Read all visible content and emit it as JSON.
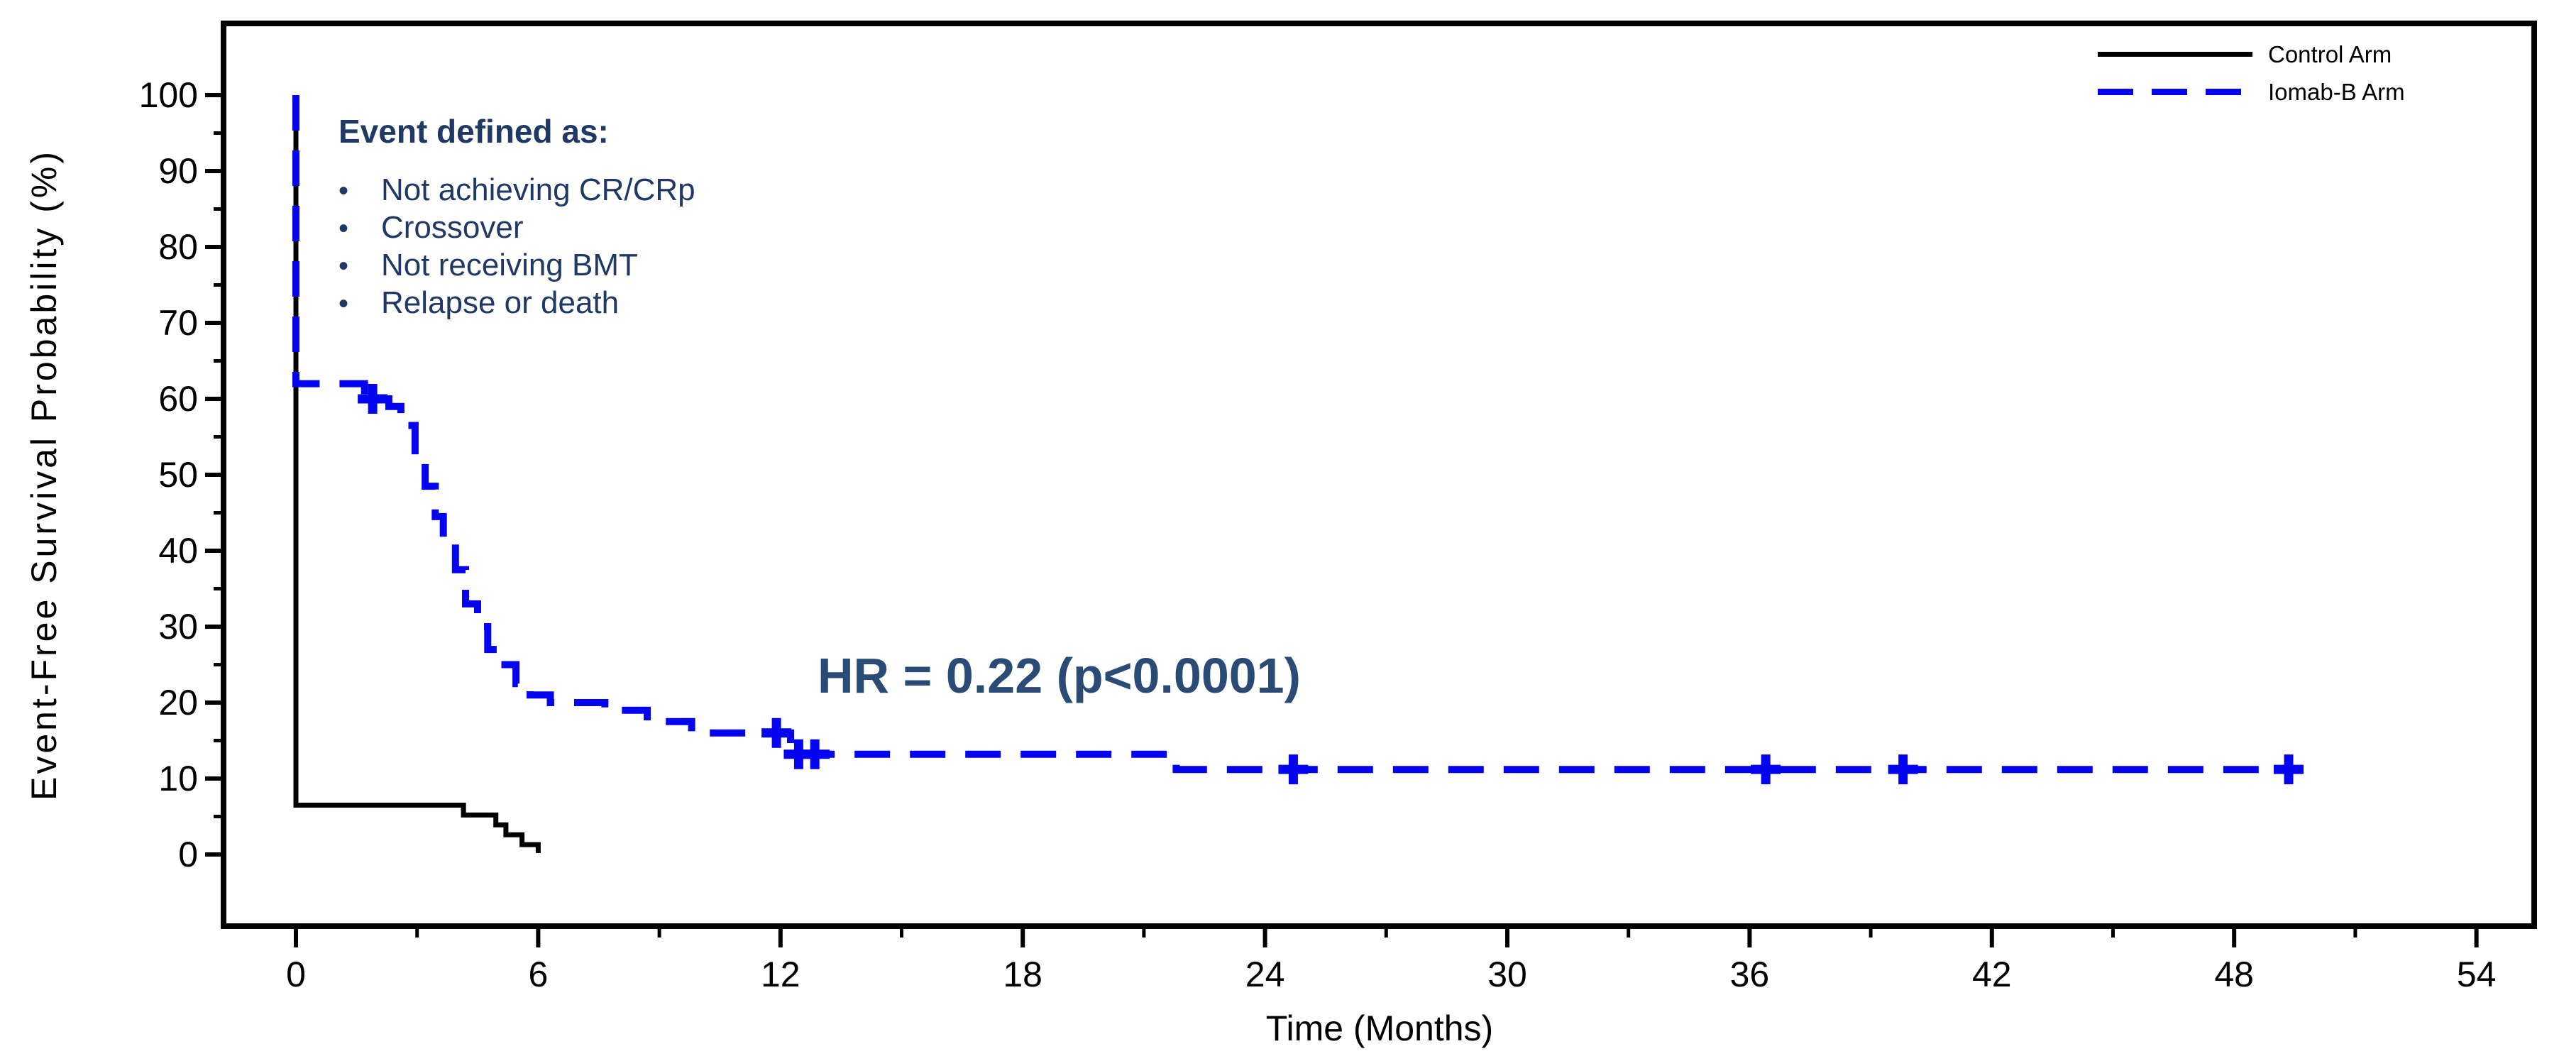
{
  "chart_data": {
    "type": "line",
    "subtype": "kaplan-meier-step",
    "title": "",
    "xlabel": "Time (Months)",
    "ylabel": "Event-Free Survival Probability (%)",
    "x_axis": {
      "min": 0,
      "max": 54,
      "major_ticks": [
        0,
        6,
        12,
        18,
        24,
        30,
        36,
        42,
        48,
        54
      ],
      "minor_ticks": [
        3,
        9,
        15,
        21,
        27,
        33,
        39,
        45,
        51
      ]
    },
    "y_axis": {
      "min": 0,
      "max": 100,
      "major_ticks": [
        0,
        10,
        20,
        30,
        40,
        50,
        60,
        70,
        80,
        90,
        100
      ],
      "minor_ticks": [
        5,
        15,
        25,
        35,
        45,
        55,
        65,
        75,
        85,
        95
      ]
    },
    "grid": false,
    "legend_position": "top-right",
    "series": [
      {
        "name": "Control Arm",
        "color": "#000000",
        "line_style": "solid",
        "steps_t_pct": [
          [
            0,
            100
          ],
          [
            0,
            6.5
          ],
          [
            4.15,
            6.5
          ],
          [
            4.15,
            5.2
          ],
          [
            4.95,
            5.2
          ],
          [
            4.95,
            3.9
          ],
          [
            5.2,
            3.9
          ],
          [
            5.2,
            2.6
          ],
          [
            5.6,
            2.6
          ],
          [
            5.6,
            1.3
          ],
          [
            6.0,
            1.3
          ],
          [
            6.0,
            0.2
          ]
        ],
        "censor_marks_t_pct": []
      },
      {
        "name": "Iomab-B Arm",
        "color": "#0404EE",
        "line_style": "dashed",
        "steps_t_pct": [
          [
            0,
            100
          ],
          [
            0,
            62
          ],
          [
            1.7,
            62
          ],
          [
            1.7,
            60
          ],
          [
            2.3,
            60
          ],
          [
            2.3,
            59
          ],
          [
            2.6,
            59
          ],
          [
            2.6,
            56.5
          ],
          [
            2.95,
            56.5
          ],
          [
            2.95,
            52.5
          ],
          [
            3.2,
            52.5
          ],
          [
            3.2,
            48.5
          ],
          [
            3.45,
            48.5
          ],
          [
            3.45,
            44.5
          ],
          [
            3.65,
            44.5
          ],
          [
            3.65,
            41
          ],
          [
            3.95,
            41
          ],
          [
            3.95,
            37.5
          ],
          [
            4.2,
            37.5
          ],
          [
            4.2,
            33
          ],
          [
            4.5,
            33
          ],
          [
            4.5,
            30
          ],
          [
            4.75,
            30
          ],
          [
            4.75,
            27
          ],
          [
            5.05,
            27
          ],
          [
            5.05,
            25
          ],
          [
            5.45,
            25
          ],
          [
            5.45,
            22.5
          ],
          [
            5.8,
            22.5
          ],
          [
            5.8,
            21
          ],
          [
            6.3,
            21
          ],
          [
            6.3,
            20
          ],
          [
            7.65,
            20
          ],
          [
            7.65,
            19
          ],
          [
            8.7,
            19
          ],
          [
            8.7,
            17.5
          ],
          [
            9.8,
            17.5
          ],
          [
            9.8,
            16
          ],
          [
            12.25,
            16
          ],
          [
            12.25,
            13.2
          ],
          [
            21.8,
            13.2
          ],
          [
            21.8,
            11.2
          ],
          [
            49.5,
            11.2
          ]
        ],
        "censor_marks_t_pct": [
          [
            1.9,
            60
          ],
          [
            11.9,
            16
          ],
          [
            12.45,
            13.2
          ],
          [
            12.85,
            13.2
          ],
          [
            24.7,
            11.2
          ],
          [
            36.4,
            11.2
          ],
          [
            39.8,
            11.2
          ],
          [
            49.35,
            11.2
          ]
        ]
      }
    ],
    "annotations": [
      {
        "id": "event-definition",
        "heading": "Event defined as:",
        "bullet_glyph": "•",
        "bullets": [
          "Not achieving CR/CRp",
          "Crossover",
          "Not receiving BMT",
          "Relapse or death"
        ]
      },
      {
        "id": "hazard-ratio",
        "text": "HR = 0.22 (p<0.0001)"
      }
    ]
  },
  "legend": {
    "items": [
      {
        "label": "Control Arm",
        "color": "#000000",
        "style": "solid"
      },
      {
        "label": "Iomab-B Arm",
        "color": "#0404EE",
        "style": "dashed"
      }
    ]
  },
  "colors": {
    "curve_blue": "#0404EE",
    "annotation_navy": "#1F3864",
    "hr_navy": "#2B4B77",
    "axis_black": "#000000",
    "background": "#FFFFFF"
  }
}
